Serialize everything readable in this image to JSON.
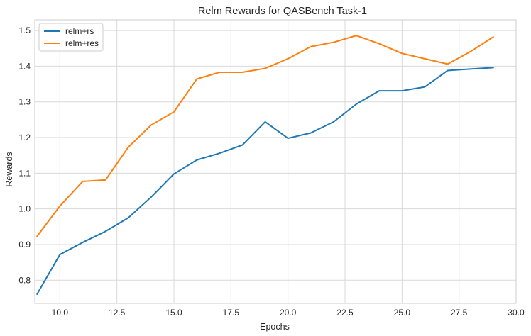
{
  "chart_data": {
    "type": "line",
    "title": "Relm Rewards for QASBench Task-1",
    "xlabel": "Epochs",
    "ylabel": "Rewards",
    "xlim": [
      8.9,
      30.0
    ],
    "ylim": [
      0.735,
      1.53
    ],
    "xticks": [
      "10.0",
      "12.5",
      "15.0",
      "17.5",
      "20.0",
      "22.5",
      "25.0",
      "27.5",
      "30.0"
    ],
    "yticks": [
      "0.8",
      "0.9",
      "1.0",
      "1.1",
      "1.2",
      "1.3",
      "1.4",
      "1.5"
    ],
    "grid": true,
    "legend_position": "top-left",
    "x": [
      9,
      10,
      11,
      12,
      13,
      14,
      15,
      16,
      17,
      18,
      19,
      20,
      21,
      22,
      23,
      24,
      25,
      26,
      27,
      28,
      29
    ],
    "series": [
      {
        "name": "relm+rs",
        "color": "#1f77b4",
        "values": [
          0.761,
          0.872,
          0.906,
          0.937,
          0.975,
          1.033,
          1.098,
          1.137,
          1.156,
          1.179,
          1.244,
          1.198,
          1.213,
          1.244,
          1.294,
          1.331,
          1.331,
          1.342,
          1.388,
          1.392,
          1.396
        ]
      },
      {
        "name": "relm+res",
        "color": "#ff7f0e",
        "values": [
          0.923,
          1.008,
          1.077,
          1.081,
          1.173,
          1.235,
          1.272,
          1.364,
          1.383,
          1.383,
          1.394,
          1.421,
          1.455,
          1.467,
          1.486,
          1.463,
          1.436,
          1.421,
          1.406,
          1.441,
          1.482
        ]
      }
    ]
  }
}
